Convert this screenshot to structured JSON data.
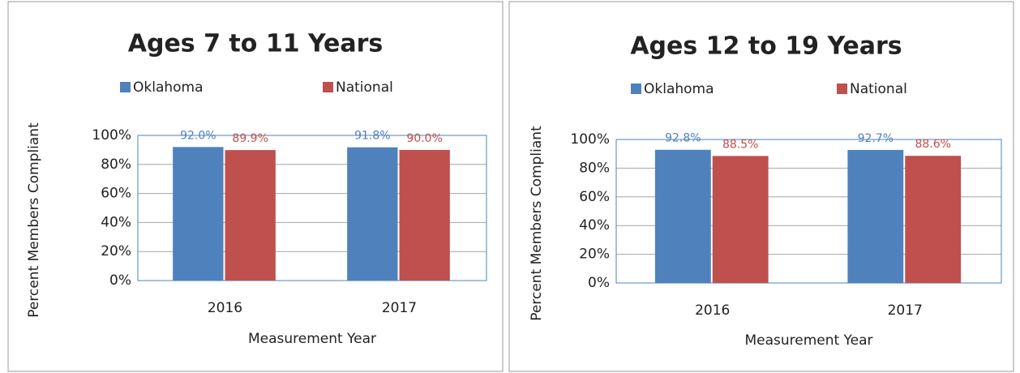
{
  "chart_data": [
    {
      "type": "bar",
      "title": "Ages 7 to 11 Years",
      "x_label": "Measurement Year",
      "y_label": "Percent Members Compliant",
      "categories": [
        "2016",
        "2017"
      ],
      "series": [
        {
          "name": "Oklahoma",
          "color": "#4f81bd",
          "values": [
            92.0,
            91.8
          ],
          "value_labels": [
            "92.0%",
            "91.8%"
          ]
        },
        {
          "name": "National",
          "color": "#c0504d",
          "values": [
            89.9,
            90.0
          ],
          "value_labels": [
            "89.9%",
            "90.0%"
          ]
        }
      ],
      "ylim": [
        0,
        100
      ],
      "yticks": [
        {
          "value": 0,
          "label": "0%"
        },
        {
          "value": 20,
          "label": "20%"
        },
        {
          "value": 40,
          "label": "40%"
        },
        {
          "value": 60,
          "label": "60%"
        },
        {
          "value": 80,
          "label": "80%"
        },
        {
          "value": 100,
          "label": "100%"
        }
      ],
      "grid": true,
      "legend": "top"
    },
    {
      "type": "bar",
      "title": "Ages 12 to 19 Years",
      "x_label": "Measurement Year",
      "y_label": "Percent Members Compliant",
      "categories": [
        "2016",
        "2017"
      ],
      "series": [
        {
          "name": "Oklahoma",
          "color": "#4f81bd",
          "values": [
            92.8,
            92.7
          ],
          "value_labels": [
            "92.8%",
            "92.7%"
          ]
        },
        {
          "name": "National",
          "color": "#c0504d",
          "values": [
            88.5,
            88.6
          ],
          "value_labels": [
            "88.5%",
            "88.6%"
          ]
        }
      ],
      "ylim": [
        0,
        100
      ],
      "yticks": [
        {
          "value": 0,
          "label": "0%"
        },
        {
          "value": 20,
          "label": "20%"
        },
        {
          "value": 40,
          "label": "40%"
        },
        {
          "value": 60,
          "label": "60%"
        },
        {
          "value": 80,
          "label": "80%"
        },
        {
          "value": 100,
          "label": "100%"
        }
      ],
      "grid": true,
      "legend": "top"
    }
  ]
}
